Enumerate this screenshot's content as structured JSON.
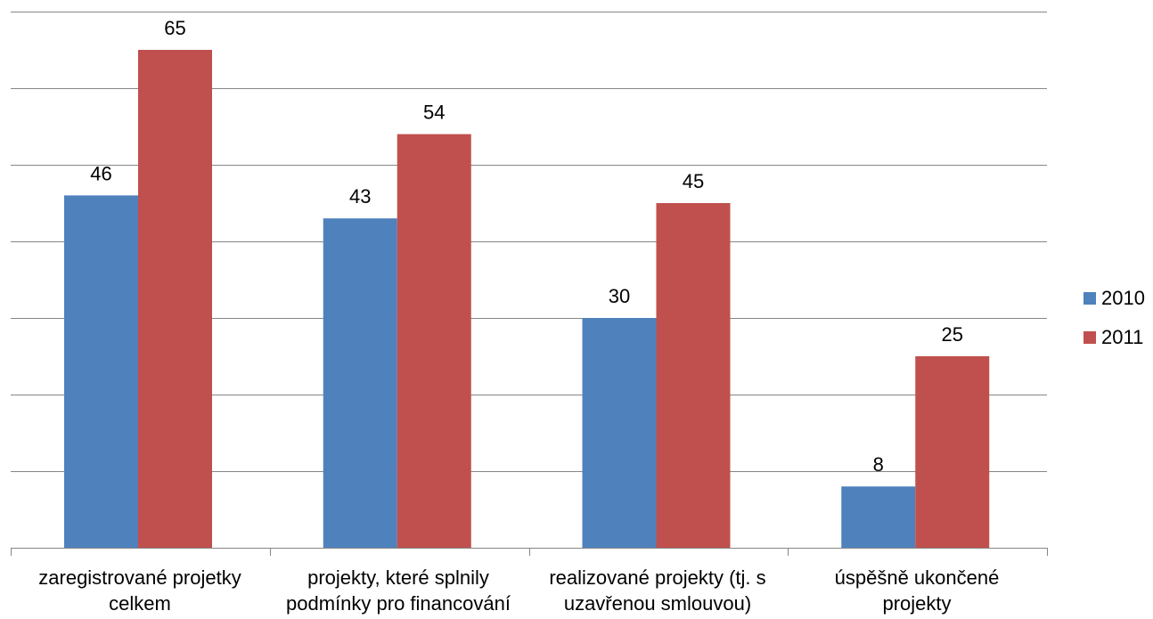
{
  "chart_data": {
    "type": "bar",
    "title": "",
    "xlabel": "",
    "ylabel": "",
    "categories": [
      [
        "zaregistrované projetky",
        "celkem"
      ],
      [
        "projekty, které splnily",
        "podmínky pro financování"
      ],
      [
        "realizované projekty (tj. s",
        "uzavřenou smlouvou)"
      ],
      [
        "úspěšně ukončené",
        "projekty"
      ]
    ],
    "series": [
      {
        "name": "2010",
        "color": "#4F81BD",
        "values": [
          46,
          43,
          30,
          8
        ]
      },
      {
        "name": "2011",
        "color": "#C0504D",
        "values": [
          65,
          54,
          45,
          25
        ]
      }
    ],
    "ylim": [
      0,
      70
    ],
    "y_grid_step": 10,
    "grid": true,
    "y_tick_labels_visible": false,
    "legend_position": "right"
  }
}
